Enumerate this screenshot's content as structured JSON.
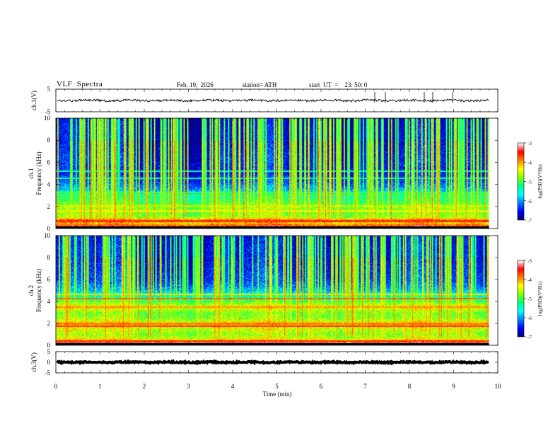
{
  "header": {
    "title": "VLF  Spectra",
    "date": "Feb. 19,  2026",
    "station": "station= ATH",
    "start_ut": "start  UT  =    23: 50: 0"
  },
  "chart_data": [
    {
      "type": "line",
      "panel": "ch1-waveform",
      "ylabel": "ch.1(V)",
      "ylim": [
        -5,
        5
      ],
      "yticks": [
        "5",
        "-5"
      ],
      "xlim": [
        0,
        10
      ],
      "series": [
        {
          "values_summary": {
            "mean": 0.0,
            "amplitude": 0.5,
            "x_end": 9.8
          }
        }
      ]
    },
    {
      "type": "heatmap",
      "panel": "ch1-spectrogram",
      "ylabel_prefix": "ch.1",
      "ylabel": "Frequency  (kHz)",
      "ylim": [
        0,
        10
      ],
      "yticks": [
        "0",
        "2",
        "4",
        "6",
        "8",
        "10"
      ],
      "xlim": [
        0,
        9.8
      ],
      "colorbar": {
        "label": "log(PSD)(V²/Hz)",
        "range": [
          -7,
          -3
        ],
        "ticks": [
          "-3",
          "-4",
          "-5",
          "-6",
          "-7"
        ]
      },
      "freq_profile_kHz": [
        [
          0.0,
          -4.8
        ],
        [
          0.2,
          -3.4
        ],
        [
          0.5,
          -4.2
        ],
        [
          0.8,
          -3.8
        ],
        [
          1.0,
          -4.6
        ],
        [
          1.5,
          -4.9
        ],
        [
          2.0,
          -4.7
        ],
        [
          2.3,
          -5.0
        ],
        [
          2.7,
          -5.2
        ],
        [
          3.0,
          -5.3
        ],
        [
          3.5,
          -5.9
        ],
        [
          4.0,
          -6.2
        ],
        [
          4.5,
          -6.4
        ],
        [
          5.0,
          -6.6
        ],
        [
          6.0,
          -6.5
        ],
        [
          7.0,
          -6.6
        ],
        [
          8.0,
          -6.7
        ],
        [
          9.0,
          -6.7
        ],
        [
          10.0,
          -6.8
        ]
      ],
      "lines_kHz": [
        {
          "f": 0.7,
          "level": -3.6
        },
        {
          "f": 1.6,
          "level": -4.4
        },
        {
          "f": 2.1,
          "level": -4.6
        },
        {
          "f": 3.1,
          "level": -5.1
        },
        {
          "f": 3.3,
          "level": -5.0
        },
        {
          "f": 4.6,
          "level": -5.4
        },
        {
          "f": 5.2,
          "level": -5.5
        }
      ],
      "sferic_rate_per_min": 24
    },
    {
      "type": "heatmap",
      "panel": "ch2-spectrogram",
      "ylabel_prefix": "ch.2",
      "ylabel": "Frequency  (kHz)",
      "ylim": [
        0,
        10
      ],
      "yticks": [
        "0",
        "2",
        "4",
        "6",
        "8",
        "10"
      ],
      "xlim": [
        0,
        9.8
      ],
      "colorbar": {
        "label": "log(PSD)(V²/Hz)",
        "range": [
          -7,
          -3
        ],
        "ticks": [
          "-3",
          "-4",
          "-5",
          "-6",
          "-7"
        ]
      },
      "freq_profile_kHz": [
        [
          0.0,
          -4.6
        ],
        [
          0.3,
          -3.6
        ],
        [
          0.6,
          -4.4
        ],
        [
          1.0,
          -4.8
        ],
        [
          1.5,
          -4.5
        ],
        [
          2.0,
          -4.2
        ],
        [
          2.5,
          -4.8
        ],
        [
          3.0,
          -4.9
        ],
        [
          3.5,
          -4.3
        ],
        [
          4.0,
          -5.0
        ],
        [
          4.5,
          -5.5
        ],
        [
          5.0,
          -5.9
        ],
        [
          5.5,
          -6.2
        ],
        [
          6.0,
          -6.4
        ],
        [
          7.0,
          -6.5
        ],
        [
          8.0,
          -6.6
        ],
        [
          9.0,
          -6.6
        ],
        [
          10.0,
          -6.7
        ]
      ],
      "lines_kHz": [
        {
          "f": 0.4,
          "level": -3.5
        },
        {
          "f": 1.8,
          "level": -3.6
        },
        {
          "f": 2.0,
          "level": -3.9
        },
        {
          "f": 3.5,
          "level": -4.0
        },
        {
          "f": 4.3,
          "level": -3.8
        },
        {
          "f": 4.7,
          "level": -4.3
        }
      ],
      "sferic_rate_per_min": 24
    },
    {
      "type": "line",
      "panel": "ch3-waveform",
      "ylabel": "ch.3(V)",
      "ylim": [
        -5,
        5
      ],
      "yticks": [
        "5",
        "0",
        "-5"
      ],
      "xlim": [
        0,
        10
      ],
      "xlabel": "Time  (min)",
      "xticks": [
        "0",
        "1",
        "2",
        "3",
        "4",
        "5",
        "6",
        "7",
        "8",
        "9",
        "10"
      ],
      "series": [
        {
          "values_summary": {
            "mean": 0.0,
            "amplitude": 0.3,
            "x_end": 9.8
          }
        }
      ]
    }
  ],
  "colors": {
    "colormap": [
      "#000080",
      "#0000ff",
      "#0080ff",
      "#00ffff",
      "#00ff80",
      "#80ff00",
      "#ffff00",
      "#ff8000",
      "#ff0000",
      "#ffffff"
    ]
  }
}
